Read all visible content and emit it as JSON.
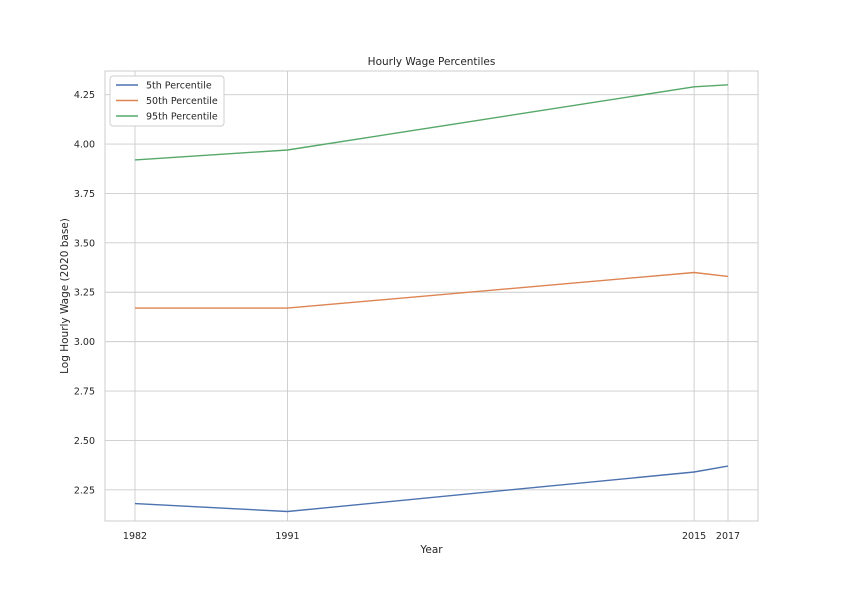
{
  "chart_data": {
    "type": "line",
    "title": "Hourly Wage Percentiles",
    "xlabel": "Year",
    "ylabel": "Log Hourly Wage (2020 base)",
    "categories": [
      "1982",
      "1991",
      "2015",
      "2017"
    ],
    "ylim": [
      2.092,
      4.37
    ],
    "yticks": [
      "2.25",
      "2.50",
      "2.75",
      "3.00",
      "3.25",
      "3.50",
      "3.75",
      "4.00",
      "4.25"
    ],
    "grid": true,
    "legend_position": "top-left",
    "series": [
      {
        "name": "5th Percentile",
        "color": "#4c72b0",
        "values": [
          2.18,
          2.14,
          2.34,
          2.37
        ]
      },
      {
        "name": "50th Percentile",
        "color": "#dd8452",
        "values": [
          3.17,
          3.17,
          3.35,
          3.33
        ]
      },
      {
        "name": "95th Percentile",
        "color": "#55a868",
        "values": [
          3.92,
          3.97,
          4.29,
          4.3
        ]
      }
    ]
  }
}
